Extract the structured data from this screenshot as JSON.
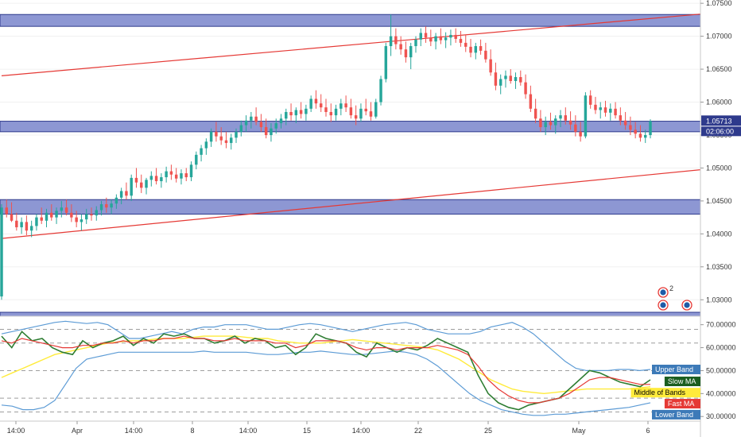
{
  "chart_data": [
    {
      "type": "candlestick",
      "title": "",
      "xlabel": "",
      "ylabel": "",
      "ylim": [
        1.0275,
        1.0755
      ],
      "y_ticks": [
        "1.07500",
        "1.07000",
        "1.06500",
        "1.06000",
        "1.05500",
        "1.05000",
        "1.04500",
        "1.04000",
        "1.03500",
        "1.03000"
      ],
      "x_ticks": [
        "14:00",
        "Apr",
        "14:00",
        "8",
        "14:00",
        "15",
        "14:00",
        "22",
        "25",
        "May",
        "6"
      ],
      "colors": {
        "up": "#26a69a",
        "down": "#ef5350",
        "zone": "#7985cb",
        "zone_border": "#2e3a8c",
        "channel": "#e53935"
      },
      "current_price": "1.05713",
      "countdown": "02:06:00",
      "zones": [
        {
          "from": 1.0715,
          "to": 1.0733
        },
        {
          "from": 1.0555,
          "to": 1.0571
        },
        {
          "from": 1.043,
          "to": 1.0452
        },
        {
          "from": 1.0275,
          "to": 1.0281
        }
      ],
      "channel_lines": [
        {
          "x1": 0,
          "y1": 1.064,
          "x2": 175,
          "y2": 1.0757
        },
        {
          "x1": 0,
          "y1": 1.0393,
          "x2": 216,
          "y2": 1.0554
        }
      ],
      "ohlc": [
        [
          1.0305,
          1.0445,
          1.03,
          1.044
        ],
        [
          1.044,
          1.0452,
          1.0425,
          1.043
        ],
        [
          1.043,
          1.0448,
          1.0418,
          1.042
        ],
        [
          1.042,
          1.0432,
          1.0405,
          1.041
        ],
        [
          1.041,
          1.0425,
          1.04,
          1.0418
        ],
        [
          1.0418,
          1.0428,
          1.0398,
          1.0405
        ],
        [
          1.0405,
          1.042,
          1.0395,
          1.0412
        ],
        [
          1.0412,
          1.043,
          1.0405,
          1.0425
        ],
        [
          1.0425,
          1.044,
          1.0415,
          1.042
        ],
        [
          1.042,
          1.0438,
          1.041,
          1.0432
        ],
        [
          1.0432,
          1.0445,
          1.042,
          1.0425
        ],
        [
          1.0425,
          1.044,
          1.0415,
          1.0435
        ],
        [
          1.0435,
          1.045,
          1.0425,
          1.044
        ],
        [
          1.044,
          1.0452,
          1.0428,
          1.0432
        ],
        [
          1.0432,
          1.0445,
          1.0418,
          1.0425
        ],
        [
          1.0425,
          1.0435,
          1.041,
          1.0418
        ],
        [
          1.0418,
          1.043,
          1.0405,
          1.0422
        ],
        [
          1.0422,
          1.0438,
          1.0415,
          1.043
        ],
        [
          1.043,
          1.044,
          1.042,
          1.0428
        ],
        [
          1.0428,
          1.0442,
          1.042,
          1.0436
        ],
        [
          1.0436,
          1.045,
          1.0428,
          1.0445
        ],
        [
          1.0445,
          1.0455,
          1.0432,
          1.044
        ],
        [
          1.044,
          1.0452,
          1.043,
          1.0446
        ],
        [
          1.0446,
          1.046,
          1.0438,
          1.0455
        ],
        [
          1.0455,
          1.047,
          1.0445,
          1.0465
        ],
        [
          1.0465,
          1.0478,
          1.0452,
          1.0458
        ],
        [
          1.0458,
          1.049,
          1.045,
          1.0485
        ],
        [
          1.0485,
          1.05,
          1.047,
          1.0478
        ],
        [
          1.0478,
          1.049,
          1.0462,
          1.047
        ],
        [
          1.047,
          1.0485,
          1.046,
          1.0482
        ],
        [
          1.0482,
          1.0495,
          1.0472,
          1.0488
        ],
        [
          1.0488,
          1.05,
          1.0475,
          1.048
        ],
        [
          1.048,
          1.0492,
          1.047,
          1.0486
        ],
        [
          1.0486,
          1.0502,
          1.0478,
          1.0495
        ],
        [
          1.0495,
          1.0505,
          1.0482,
          1.049
        ],
        [
          1.049,
          1.05,
          1.0478,
          1.0484
        ],
        [
          1.0484,
          1.0498,
          1.0475,
          1.0492
        ],
        [
          1.0492,
          1.05,
          1.048,
          1.0486
        ],
        [
          1.0486,
          1.051,
          1.048,
          1.0505
        ],
        [
          1.0505,
          1.0525,
          1.0498,
          1.052
        ],
        [
          1.052,
          1.0535,
          1.051,
          1.053
        ],
        [
          1.053,
          1.0545,
          1.052,
          1.054
        ],
        [
          1.054,
          1.056,
          1.0532,
          1.0555
        ],
        [
          1.0555,
          1.057,
          1.054,
          1.0548
        ],
        [
          1.0548,
          1.0562,
          1.0535,
          1.0542
        ],
        [
          1.0542,
          1.0555,
          1.053,
          1.0538
        ],
        [
          1.0538,
          1.0552,
          1.0528,
          1.0546
        ],
        [
          1.0546,
          1.056,
          1.0538,
          1.0555
        ],
        [
          1.0555,
          1.0572,
          1.0548,
          1.0565
        ],
        [
          1.0565,
          1.058,
          1.0555,
          1.0572
        ],
        [
          1.0572,
          1.0585,
          1.056,
          1.0578
        ],
        [
          1.0578,
          1.0592,
          1.0565,
          1.057
        ],
        [
          1.057,
          1.0582,
          1.0555,
          1.0562
        ],
        [
          1.0562,
          1.0575,
          1.0545,
          1.055
        ],
        [
          1.055,
          1.0568,
          1.054,
          1.056
        ],
        [
          1.056,
          1.0575,
          1.0552,
          1.0568
        ],
        [
          1.0568,
          1.0582,
          1.056,
          1.0575
        ],
        [
          1.0575,
          1.059,
          1.0565,
          1.0585
        ],
        [
          1.0585,
          1.0598,
          1.0572,
          1.058
        ],
        [
          1.058,
          1.0592,
          1.0568,
          1.0588
        ],
        [
          1.0588,
          1.06,
          1.0575,
          1.0582
        ],
        [
          1.0582,
          1.0596,
          1.0572,
          1.059
        ],
        [
          1.059,
          1.061,
          1.0585,
          1.0605
        ],
        [
          1.0605,
          1.0618,
          1.059,
          1.0598
        ],
        [
          1.0598,
          1.0612,
          1.0585,
          1.0592
        ],
        [
          1.0592,
          1.0605,
          1.0578,
          1.0585
        ],
        [
          1.0585,
          1.0598,
          1.057,
          1.058
        ],
        [
          1.058,
          1.0596,
          1.0572,
          1.059
        ],
        [
          1.059,
          1.0605,
          1.058,
          1.0598
        ],
        [
          1.0598,
          1.061,
          1.0585,
          1.0592
        ],
        [
          1.0592,
          1.0605,
          1.0575,
          1.058
        ],
        [
          1.058,
          1.0595,
          1.0565,
          1.0575
        ],
        [
          1.0575,
          1.0598,
          1.057,
          1.059
        ],
        [
          1.059,
          1.0605,
          1.058,
          1.0586
        ],
        [
          1.0586,
          1.06,
          1.0572,
          1.0578
        ],
        [
          1.0578,
          1.0605,
          1.0575,
          1.06
        ],
        [
          1.06,
          1.064,
          1.0595,
          1.0635
        ],
        [
          1.0635,
          1.069,
          1.063,
          1.0685
        ],
        [
          1.0685,
          1.0733,
          1.067,
          1.07
        ],
        [
          1.07,
          1.0712,
          1.068,
          1.0688
        ],
        [
          1.0688,
          1.07,
          1.0672,
          1.068
        ],
        [
          1.068,
          1.0692,
          1.066,
          1.0668
        ],
        [
          1.0668,
          1.069,
          1.065,
          1.0685
        ],
        [
          1.0685,
          1.07,
          1.0675,
          1.0695
        ],
        [
          1.0695,
          1.0712,
          1.0685,
          1.0705
        ],
        [
          1.0705,
          1.0715,
          1.069,
          1.0698
        ],
        [
          1.0698,
          1.071,
          1.0685,
          1.0692
        ],
        [
          1.0692,
          1.0705,
          1.068,
          1.07
        ],
        [
          1.07,
          1.0712,
          1.0688,
          1.0694
        ],
        [
          1.0694,
          1.0706,
          1.0682,
          1.0698
        ],
        [
          1.0698,
          1.071,
          1.0686,
          1.0702
        ],
        [
          1.0702,
          1.0712,
          1.069,
          1.0696
        ],
        [
          1.0696,
          1.0708,
          1.0684,
          1.069
        ],
        [
          1.069,
          1.0702,
          1.0676,
          1.0684
        ],
        [
          1.0684,
          1.0696,
          1.0668,
          1.0675
        ],
        [
          1.0675,
          1.069,
          1.0665,
          1.0685
        ],
        [
          1.0685,
          1.0695,
          1.0672,
          1.0678
        ],
        [
          1.0678,
          1.069,
          1.066,
          1.0665
        ],
        [
          1.0665,
          1.068,
          1.064,
          1.0645
        ],
        [
          1.0645,
          1.066,
          1.0618,
          1.0625
        ],
        [
          1.0625,
          1.0642,
          1.0612,
          1.0635
        ],
        [
          1.0635,
          1.0648,
          1.0622,
          1.064
        ],
        [
          1.064,
          1.065,
          1.0628,
          1.0632
        ],
        [
          1.0632,
          1.0645,
          1.062,
          1.0638
        ],
        [
          1.0638,
          1.0648,
          1.0625,
          1.063
        ],
        [
          1.063,
          1.0642,
          1.0605,
          1.0612
        ],
        [
          1.0612,
          1.0625,
          1.0585,
          1.059
        ],
        [
          1.059,
          1.0605,
          1.0568,
          1.0575
        ],
        [
          1.0575,
          1.0588,
          1.0555,
          1.0562
        ],
        [
          1.0562,
          1.0578,
          1.055,
          1.057
        ],
        [
          1.057,
          1.0584,
          1.0558,
          1.0565
        ],
        [
          1.0565,
          1.058,
          1.0552,
          1.0575
        ],
        [
          1.0575,
          1.0588,
          1.0562,
          1.058
        ],
        [
          1.058,
          1.0592,
          1.0566,
          1.0572
        ],
        [
          1.0572,
          1.0586,
          1.0558,
          1.0566
        ],
        [
          1.0566,
          1.058,
          1.0548,
          1.0555
        ],
        [
          1.0555,
          1.057,
          1.054,
          1.0548
        ],
        [
          1.0548,
          1.0615,
          1.0545,
          1.061
        ],
        [
          1.061,
          1.0618,
          1.059,
          1.0596
        ],
        [
          1.0596,
          1.0608,
          1.0582,
          1.0588
        ],
        [
          1.0588,
          1.06,
          1.0575,
          1.0592
        ],
        [
          1.0592,
          1.0602,
          1.0578,
          1.0584
        ],
        [
          1.0584,
          1.0598,
          1.0572,
          1.059
        ],
        [
          1.059,
          1.06,
          1.0575,
          1.058
        ],
        [
          1.058,
          1.0592,
          1.0565,
          1.0572
        ],
        [
          1.0572,
          1.0585,
          1.0558,
          1.0565
        ],
        [
          1.0565,
          1.0578,
          1.055,
          1.0558
        ],
        [
          1.0558,
          1.057,
          1.0545,
          1.0552
        ],
        [
          1.0552,
          1.0565,
          1.054,
          1.0546
        ],
        [
          1.0546,
          1.0558,
          1.0538,
          1.055
        ],
        [
          1.055,
          1.0574,
          1.0545,
          1.0571
        ]
      ]
    },
    {
      "type": "line",
      "title": "",
      "ylim": [
        28,
        73
      ],
      "y_ticks": [
        "70.00000",
        "60.00000",
        "50.00000",
        "40.00000",
        "30.00000"
      ],
      "dashed_levels": [
        68,
        62,
        50,
        38,
        32
      ],
      "series": [
        {
          "name": "Upper Band",
          "color": "#5c9bd5",
          "values": [
            66,
            67,
            68,
            69,
            70,
            71,
            71.5,
            71,
            70.5,
            71,
            70,
            67,
            64,
            64,
            65,
            66,
            67,
            66,
            68,
            69,
            69,
            70,
            70,
            70,
            69,
            68,
            68,
            69,
            70,
            70.5,
            70,
            69,
            68,
            67,
            68,
            69,
            70,
            70.5,
            71,
            70,
            68,
            67,
            66,
            66,
            66,
            67,
            69,
            70,
            71,
            69,
            66,
            62,
            58,
            54,
            51,
            50,
            50,
            50,
            50.5,
            50.5,
            50,
            50.5
          ]
        },
        {
          "name": "Lower Band",
          "color": "#5c9bd5",
          "values": [
            35,
            34.5,
            33,
            33,
            34,
            37,
            44,
            51,
            55,
            56,
            57,
            58,
            58,
            58,
            58,
            58,
            58,
            58,
            58,
            58.5,
            58,
            58,
            58,
            58,
            57.5,
            57,
            57,
            57.5,
            58,
            58,
            58.5,
            58,
            57.5,
            57,
            57,
            57.5,
            58,
            58.5,
            58,
            57,
            55,
            52,
            48,
            44,
            40,
            37,
            35,
            33,
            32,
            31,
            30.5,
            30.5,
            31,
            31,
            31.5,
            32,
            32.5,
            33,
            33.5,
            34,
            35,
            36
          ]
        },
        {
          "name": "Middle of Bands",
          "color": "#ffeb3b",
          "values": [
            47,
            49,
            51,
            53,
            55,
            57,
            58,
            59,
            60,
            61,
            62,
            62.5,
            63,
            63,
            63.5,
            64,
            64,
            64,
            64.5,
            65,
            65,
            65,
            65,
            64.5,
            64,
            64,
            63,
            62.5,
            62,
            62,
            62,
            62.5,
            63,
            63.5,
            63,
            62.5,
            62,
            61.5,
            61,
            60.5,
            60,
            59,
            57,
            55,
            52,
            49,
            46,
            44,
            42,
            41,
            40.5,
            40,
            40.5,
            41,
            41.5,
            42,
            42,
            42,
            42,
            42,
            42.5,
            43
          ]
        },
        {
          "name": "Slow MA",
          "color": "#2e7d32",
          "values": [
            65,
            60,
            67,
            63,
            64,
            60,
            58,
            57,
            63,
            60,
            62,
            63,
            65,
            61,
            64,
            62,
            66,
            65,
            66,
            64,
            64,
            62,
            63,
            65,
            62,
            64,
            63,
            60,
            61,
            57,
            60,
            66,
            64,
            63,
            62,
            58,
            56,
            62,
            60,
            58,
            60,
            59,
            61,
            64,
            62,
            60,
            58,
            48,
            40,
            36,
            34,
            33,
            35,
            36,
            37,
            38,
            42,
            46,
            50,
            49,
            47,
            45,
            44,
            43,
            46
          ]
        },
        {
          "name": "Fast MA",
          "color": "#e53935",
          "values": [
            63,
            62,
            64,
            63,
            62,
            61,
            60,
            60,
            61,
            61,
            62,
            62,
            63,
            62,
            63,
            63,
            64,
            64,
            65,
            64,
            64,
            63,
            63,
            64,
            63,
            63,
            63,
            62,
            62,
            60,
            61,
            63,
            63,
            63,
            62,
            60,
            59,
            60,
            60,
            59,
            60,
            60,
            60,
            61,
            60,
            59,
            57,
            52,
            46,
            42,
            39,
            37,
            36,
            36,
            37,
            38,
            40,
            43,
            46,
            47,
            47,
            46,
            45,
            44,
            44
          ]
        }
      ],
      "legend": [
        "Upper Band",
        "Slow MA",
        "Middle of Bands",
        "Fast MA",
        "Lower Band"
      ],
      "legend_placement": "right"
    }
  ]
}
